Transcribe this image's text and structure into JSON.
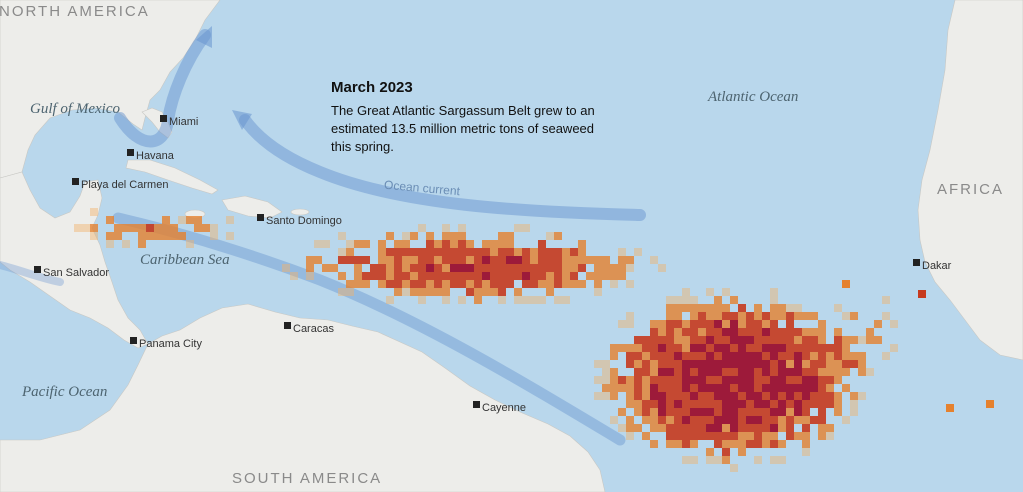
{
  "title": "March 2023",
  "description": "The Great Atlantic Sargassum Belt grew to an estimated 13.5 million metric tons of seaweed this spring.",
  "current_label": "Ocean current",
  "regions": {
    "north_america": "NORTH AMERICA",
    "south_america": "SOUTH AMERICA",
    "africa": "AFRICA"
  },
  "water_bodies": {
    "gulf_of_mexico": "Gulf of Mexico",
    "atlantic_ocean": "Atlantic Ocean",
    "caribbean_sea": "Caribbean Sea",
    "pacific_ocean": "Pacific Ocean"
  },
  "cities": {
    "miami": "Miami",
    "havana": "Havana",
    "playa_del_carmen": "Playa del Carmen",
    "santo_domingo": "Santo Domingo",
    "san_salvador": "San Salvador",
    "caracas": "Caracas",
    "panama_city": "Panama City",
    "cayenne": "Cayenne",
    "dakar": "Dakar"
  },
  "colors": {
    "ocean": "#b9d7ec",
    "land": "#ededea",
    "current": "#6a96d0",
    "sargassum_low": "#f1b26a",
    "sargassum_mid": "#e5812e",
    "sargassum_high": "#c63a1e",
    "sargassum_max": "#9b1030"
  }
}
